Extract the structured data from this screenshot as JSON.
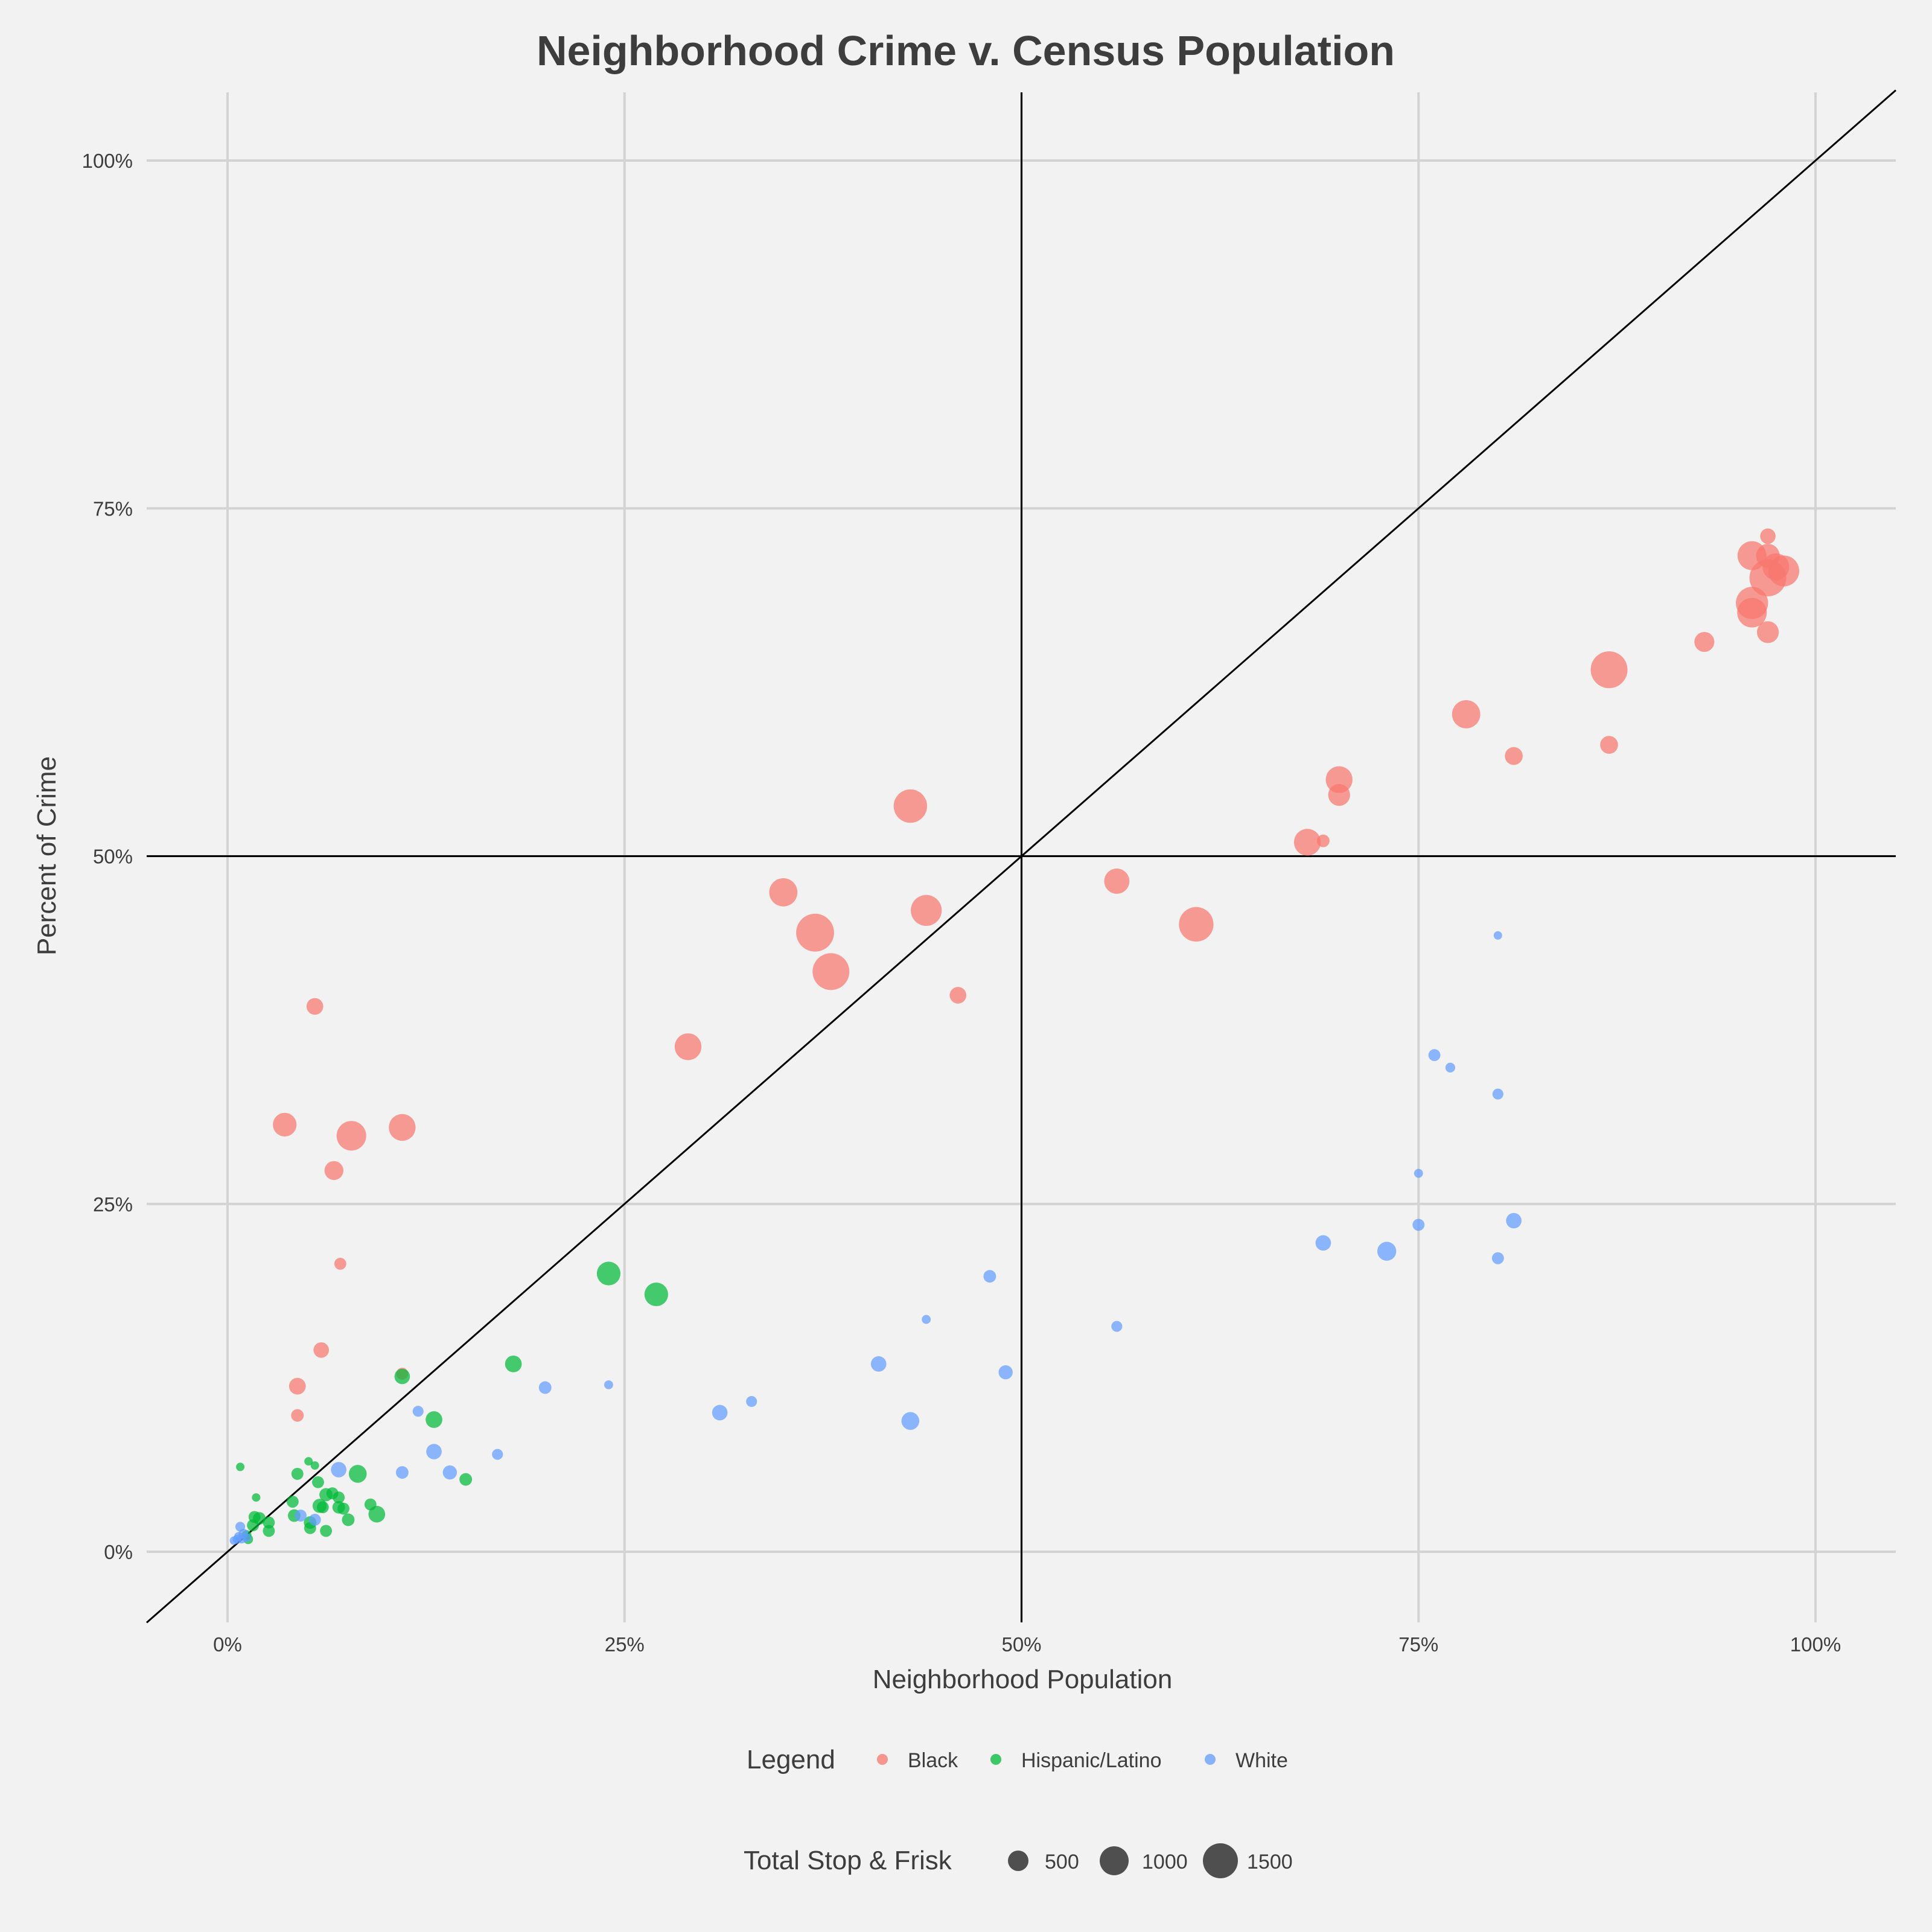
{
  "chart_data": {
    "type": "scatter",
    "title": "Neighborhood Crime v. Census Population",
    "xlabel": "Neighborhood Population",
    "ylabel": "Percent of Crime",
    "xlim": [
      -0.05,
      1.05
    ],
    "ylim": [
      -0.05,
      1.05
    ],
    "x_ticks": [
      0,
      0.25,
      0.5,
      0.75,
      1
    ],
    "x_tick_labels": [
      "0%",
      "25%",
      "50%",
      "75%",
      "100%"
    ],
    "y_ticks": [
      0,
      0.25,
      0.5,
      0.75,
      1
    ],
    "y_tick_labels": [
      "0%",
      "25%",
      "50%",
      "75%",
      "100%"
    ],
    "grid": true,
    "reference_lines": [
      {
        "type": "diagonal",
        "slope": 1,
        "intercept": 0
      },
      {
        "type": "vertical",
        "x": 0.5
      },
      {
        "type": "horizontal",
        "y": 0.5
      }
    ],
    "colors": {
      "Black": "#f8766d",
      "Hispanic/Latino": "#00ba38",
      "White": "#619cff"
    },
    "legend": {
      "placement": "bottom",
      "color_title": "Legend",
      "color_entries": [
        "Black",
        "Hispanic/Latino",
        "White"
      ],
      "size_title": "Total Stop & Frisk",
      "size_entries": [
        500,
        1000,
        1500
      ]
    },
    "series": [
      {
        "name": "Black",
        "points": [
          {
            "x": 0.97,
            "y": 0.73,
            "size": 300
          },
          {
            "x": 0.96,
            "y": 0.716,
            "size": 1050
          },
          {
            "x": 0.97,
            "y": 0.716,
            "size": 700
          },
          {
            "x": 0.97,
            "y": 0.7,
            "size": 1700
          },
          {
            "x": 0.98,
            "y": 0.705,
            "size": 1200
          },
          {
            "x": 0.975,
            "y": 0.708,
            "size": 900
          },
          {
            "x": 0.96,
            "y": 0.682,
            "size": 1300
          },
          {
            "x": 0.96,
            "y": 0.675,
            "size": 1100
          },
          {
            "x": 0.97,
            "y": 0.661,
            "size": 600
          },
          {
            "x": 0.93,
            "y": 0.654,
            "size": 500
          },
          {
            "x": 0.87,
            "y": 0.634,
            "size": 1700
          },
          {
            "x": 0.78,
            "y": 0.602,
            "size": 1000
          },
          {
            "x": 0.87,
            "y": 0.58,
            "size": 400
          },
          {
            "x": 0.81,
            "y": 0.572,
            "size": 400
          },
          {
            "x": 0.7,
            "y": 0.555,
            "size": 900
          },
          {
            "x": 0.7,
            "y": 0.544,
            "size": 600
          },
          {
            "x": 0.43,
            "y": 0.536,
            "size": 1400
          },
          {
            "x": 0.68,
            "y": 0.51,
            "size": 900
          },
          {
            "x": 0.69,
            "y": 0.511,
            "size": 200
          },
          {
            "x": 0.56,
            "y": 0.482,
            "size": 800
          },
          {
            "x": 0.35,
            "y": 0.474,
            "size": 1000
          },
          {
            "x": 0.44,
            "y": 0.461,
            "size": 1200
          },
          {
            "x": 0.37,
            "y": 0.445,
            "size": 1800
          },
          {
            "x": 0.61,
            "y": 0.451,
            "size": 1500
          },
          {
            "x": 0.38,
            "y": 0.417,
            "size": 1700
          },
          {
            "x": 0.46,
            "y": 0.4,
            "size": 350
          },
          {
            "x": 0.055,
            "y": 0.392,
            "size": 350
          },
          {
            "x": 0.29,
            "y": 0.363,
            "size": 900
          },
          {
            "x": 0.036,
            "y": 0.307,
            "size": 700
          },
          {
            "x": 0.11,
            "y": 0.305,
            "size": 900
          },
          {
            "x": 0.078,
            "y": 0.299,
            "size": 1100
          },
          {
            "x": 0.067,
            "y": 0.274,
            "size": 450
          },
          {
            "x": 0.071,
            "y": 0.207,
            "size": 180
          },
          {
            "x": 0.059,
            "y": 0.145,
            "size": 300
          },
          {
            "x": 0.11,
            "y": 0.128,
            "size": 180
          },
          {
            "x": 0.044,
            "y": 0.119,
            "size": 350
          },
          {
            "x": 0.044,
            "y": 0.098,
            "size": 200
          }
        ]
      },
      {
        "name": "Hispanic/Latino",
        "points": [
          {
            "x": 0.24,
            "y": 0.2,
            "size": 700
          },
          {
            "x": 0.27,
            "y": 0.185,
            "size": 700
          },
          {
            "x": 0.18,
            "y": 0.135,
            "size": 350
          },
          {
            "x": 0.11,
            "y": 0.126,
            "size": 300
          },
          {
            "x": 0.13,
            "y": 0.095,
            "size": 350
          },
          {
            "x": 0.008,
            "y": 0.061,
            "size": 80
          },
          {
            "x": 0.051,
            "y": 0.065,
            "size": 80
          },
          {
            "x": 0.055,
            "y": 0.062,
            "size": 80
          },
          {
            "x": 0.044,
            "y": 0.056,
            "size": 180
          },
          {
            "x": 0.082,
            "y": 0.056,
            "size": 400
          },
          {
            "x": 0.15,
            "y": 0.052,
            "size": 200
          },
          {
            "x": 0.057,
            "y": 0.05,
            "size": 180
          },
          {
            "x": 0.062,
            "y": 0.041,
            "size": 220
          },
          {
            "x": 0.066,
            "y": 0.042,
            "size": 180
          },
          {
            "x": 0.07,
            "y": 0.039,
            "size": 180
          },
          {
            "x": 0.018,
            "y": 0.039,
            "size": 80
          },
          {
            "x": 0.041,
            "y": 0.036,
            "size": 180
          },
          {
            "x": 0.058,
            "y": 0.033,
            "size": 250
          },
          {
            "x": 0.06,
            "y": 0.032,
            "size": 180
          },
          {
            "x": 0.07,
            "y": 0.032,
            "size": 200
          },
          {
            "x": 0.073,
            "y": 0.031,
            "size": 180
          },
          {
            "x": 0.09,
            "y": 0.034,
            "size": 180
          },
          {
            "x": 0.094,
            "y": 0.027,
            "size": 350
          },
          {
            "x": 0.042,
            "y": 0.026,
            "size": 200
          },
          {
            "x": 0.017,
            "y": 0.025,
            "size": 180
          },
          {
            "x": 0.02,
            "y": 0.024,
            "size": 200
          },
          {
            "x": 0.076,
            "y": 0.023,
            "size": 200
          },
          {
            "x": 0.052,
            "y": 0.021,
            "size": 200
          },
          {
            "x": 0.026,
            "y": 0.021,
            "size": 180
          },
          {
            "x": 0.016,
            "y": 0.019,
            "size": 180
          },
          {
            "x": 0.052,
            "y": 0.017,
            "size": 180
          },
          {
            "x": 0.026,
            "y": 0.015,
            "size": 180
          },
          {
            "x": 0.062,
            "y": 0.015,
            "size": 180
          },
          {
            "x": 0.012,
            "y": 0.012,
            "size": 120
          },
          {
            "x": 0.013,
            "y": 0.009,
            "size": 120
          }
        ]
      },
      {
        "name": "White",
        "points": [
          {
            "x": 0.8,
            "y": 0.443,
            "size": 90
          },
          {
            "x": 0.76,
            "y": 0.357,
            "size": 180
          },
          {
            "x": 0.77,
            "y": 0.348,
            "size": 120
          },
          {
            "x": 0.8,
            "y": 0.329,
            "size": 150
          },
          {
            "x": 0.75,
            "y": 0.272,
            "size": 100
          },
          {
            "x": 0.81,
            "y": 0.238,
            "size": 300
          },
          {
            "x": 0.75,
            "y": 0.235,
            "size": 180
          },
          {
            "x": 0.69,
            "y": 0.222,
            "size": 300
          },
          {
            "x": 0.73,
            "y": 0.216,
            "size": 450
          },
          {
            "x": 0.8,
            "y": 0.211,
            "size": 180
          },
          {
            "x": 0.48,
            "y": 0.198,
            "size": 200
          },
          {
            "x": 0.44,
            "y": 0.167,
            "size": 100
          },
          {
            "x": 0.56,
            "y": 0.162,
            "size": 150
          },
          {
            "x": 0.41,
            "y": 0.135,
            "size": 300
          },
          {
            "x": 0.49,
            "y": 0.129,
            "size": 250
          },
          {
            "x": 0.2,
            "y": 0.118,
            "size": 200
          },
          {
            "x": 0.24,
            "y": 0.12,
            "size": 100
          },
          {
            "x": 0.33,
            "y": 0.108,
            "size": 150
          },
          {
            "x": 0.12,
            "y": 0.101,
            "size": 150
          },
          {
            "x": 0.31,
            "y": 0.1,
            "size": 300
          },
          {
            "x": 0.43,
            "y": 0.094,
            "size": 400
          },
          {
            "x": 0.13,
            "y": 0.072,
            "size": 300
          },
          {
            "x": 0.17,
            "y": 0.07,
            "size": 150
          },
          {
            "x": 0.07,
            "y": 0.059,
            "size": 300
          },
          {
            "x": 0.11,
            "y": 0.057,
            "size": 200
          },
          {
            "x": 0.14,
            "y": 0.057,
            "size": 250
          },
          {
            "x": 0.046,
            "y": 0.026,
            "size": 180
          },
          {
            "x": 0.055,
            "y": 0.023,
            "size": 180
          },
          {
            "x": 0.008,
            "y": 0.018,
            "size": 120
          },
          {
            "x": 0.01,
            "y": 0.013,
            "size": 120
          },
          {
            "x": 0.007,
            "y": 0.011,
            "size": 100
          },
          {
            "x": 0.012,
            "y": 0.01,
            "size": 100
          },
          {
            "x": 0.006,
            "y": 0.009,
            "size": 100
          },
          {
            "x": 0.004,
            "y": 0.008,
            "size": 80
          },
          {
            "x": 0.009,
            "y": 0.009,
            "size": 80
          }
        ]
      }
    ]
  }
}
